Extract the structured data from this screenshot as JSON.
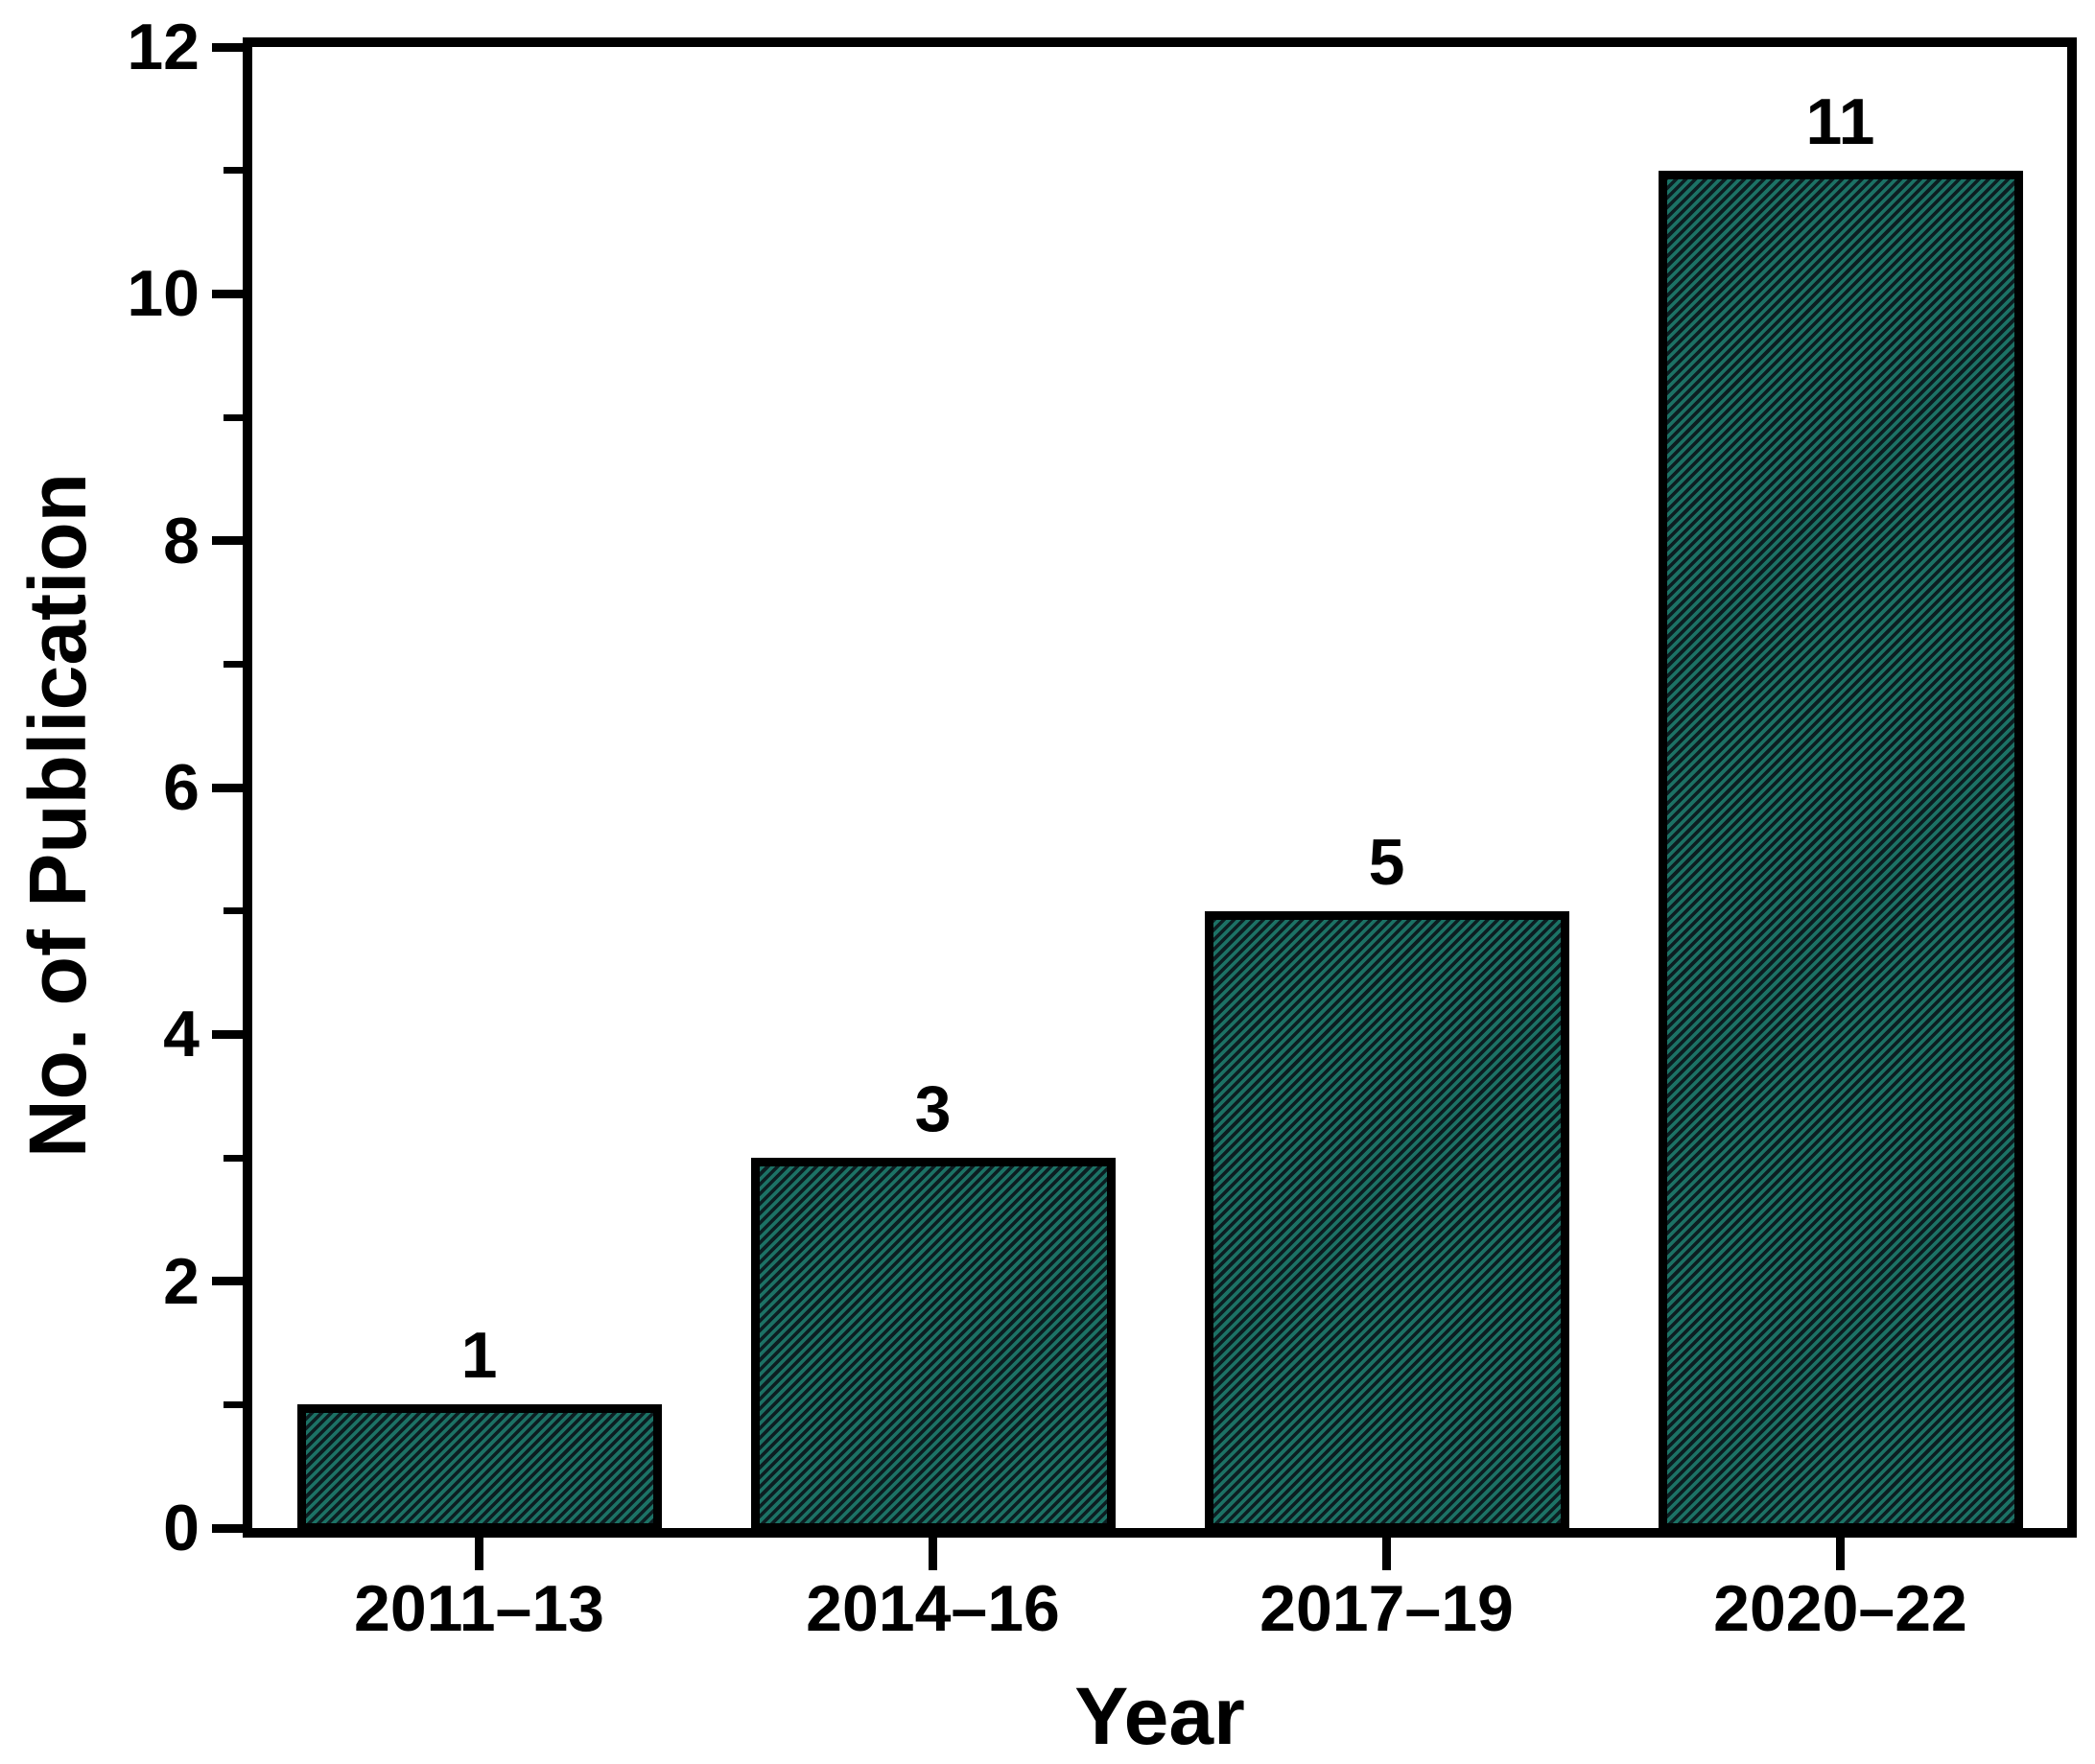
{
  "chart_data": {
    "type": "bar",
    "categories": [
      "2011–13",
      "2014–16",
      "2017–19",
      "2020–22"
    ],
    "values": [
      1,
      3,
      5,
      11
    ],
    "bar_value_labels": [
      "1",
      "3",
      "5",
      "11"
    ],
    "title": "",
    "xlabel": "Year",
    "ylabel": "No. of Publication",
    "ylim": [
      0,
      12
    ],
    "y_major_ticks": [
      0,
      2,
      4,
      6,
      8,
      10,
      12
    ],
    "y_minor_ticks": [
      1,
      3,
      5,
      7,
      9,
      11
    ],
    "grid": false,
    "legend": false,
    "bar_fill_color": "#1c7265",
    "bar_hatch_color": "#0c1d21",
    "bar_hatch_style": "diagonal-forward",
    "bar_edge_color": "#000000",
    "axis_color": "#000000",
    "text_color": "#000000",
    "background_color": "#ffffff"
  }
}
